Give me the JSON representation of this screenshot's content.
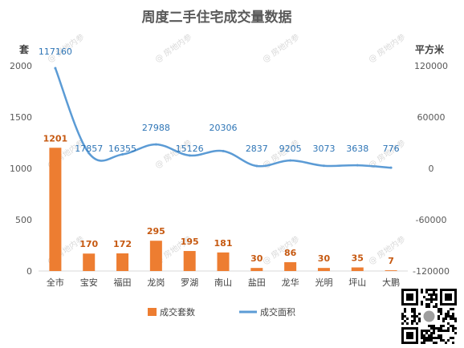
{
  "chart_data": {
    "type": "bar",
    "title": "周度二手住宅成交量数据",
    "categories": [
      "全市",
      "宝安",
      "福田",
      "龙岗",
      "罗湖",
      "南山",
      "盐田",
      "龙华",
      "光明",
      "坪山",
      "大鹏"
    ],
    "left_axis": {
      "unit": "套",
      "ylim": [
        0,
        2000
      ],
      "ticks": [
        0,
        500,
        1000,
        1500,
        2000
      ]
    },
    "right_axis": {
      "unit": "平方米",
      "ylim": [
        -120000,
        120000
      ],
      "ticks": [
        "-120000",
        "-60000",
        "0",
        "60000",
        "120000"
      ]
    },
    "series": [
      {
        "name": "成交套数",
        "type": "bar",
        "axis": "left",
        "color": "#ed7d31",
        "values": [
          1201,
          170,
          172,
          295,
          195,
          181,
          30,
          86,
          30,
          35,
          7
        ]
      },
      {
        "name": "成交面积",
        "type": "line",
        "axis": "right",
        "color": "#5b9bd5",
        "values": [
          117160,
          17857,
          16355,
          27988,
          15126,
          20306,
          2837,
          9205,
          3073,
          3638,
          776
        ]
      }
    ],
    "legend_position": "bottom",
    "grid": false,
    "watermark": "房地内参"
  }
}
